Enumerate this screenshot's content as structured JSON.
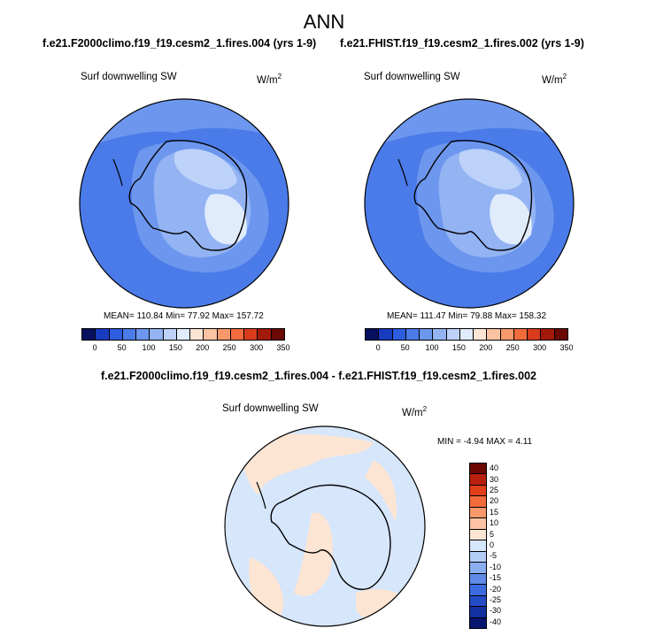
{
  "title": "ANN",
  "panels": [
    {
      "case": "f.e21.F2000climo.f19_f19.cesm2_1.fires.004 (yrs 1-9)",
      "variable": "Surf downwelling SW",
      "units": "W/m",
      "units_exp": "2",
      "stats": "MEAN= 110.84  Min=  77.92  Max= 157.72"
    },
    {
      "case": "f.e21.FHIST.f19_f19.cesm2_1.fires.002 (yrs 1-9)",
      "variable": "Surf downwelling SW",
      "units": "W/m",
      "units_exp": "2",
      "stats": "MEAN= 111.47  Min=  79.88  Max= 158.32"
    }
  ],
  "diff": {
    "case": "f.e21.F2000climo.f19_f19.cesm2_1.fires.004 - f.e21.FHIST.f19_f19.cesm2_1.fires.002",
    "variable": "Surf downwelling SW",
    "units": "W/m",
    "units_exp": "2",
    "stats": "MIN =  -4.94 MAX =   4.11"
  },
  "colorbar_abs": {
    "colors": [
      "#08115e",
      "#1a3bbf",
      "#2d5ee0",
      "#4a7be8",
      "#6d97ee",
      "#93b3f3",
      "#bdd2f8",
      "#e0ecfc",
      "#fde5d4",
      "#fbc3a3",
      "#f8996b",
      "#f26b3c",
      "#d93c1c",
      "#a31a0b",
      "#6b0804"
    ],
    "ticks": [
      "0",
      "50",
      "100",
      "150",
      "200",
      "250",
      "300",
      "350"
    ]
  },
  "colorbar_diff": {
    "colors": [
      "#6b0804",
      "#b81f0d",
      "#e0401a",
      "#f26b3c",
      "#f8996b",
      "#fbc3a3",
      "#fde5d4",
      "#d6e6fb",
      "#b3cdf6",
      "#8aaef0",
      "#5f8ae8",
      "#3d6ae0",
      "#244cc8",
      "#1230a0",
      "#081670"
    ],
    "ticks": [
      "40",
      "30",
      "25",
      "20",
      "15",
      "10",
      "5",
      "0",
      "-5",
      "-10",
      "-15",
      "-20",
      "-25",
      "-30",
      "-40"
    ]
  }
}
